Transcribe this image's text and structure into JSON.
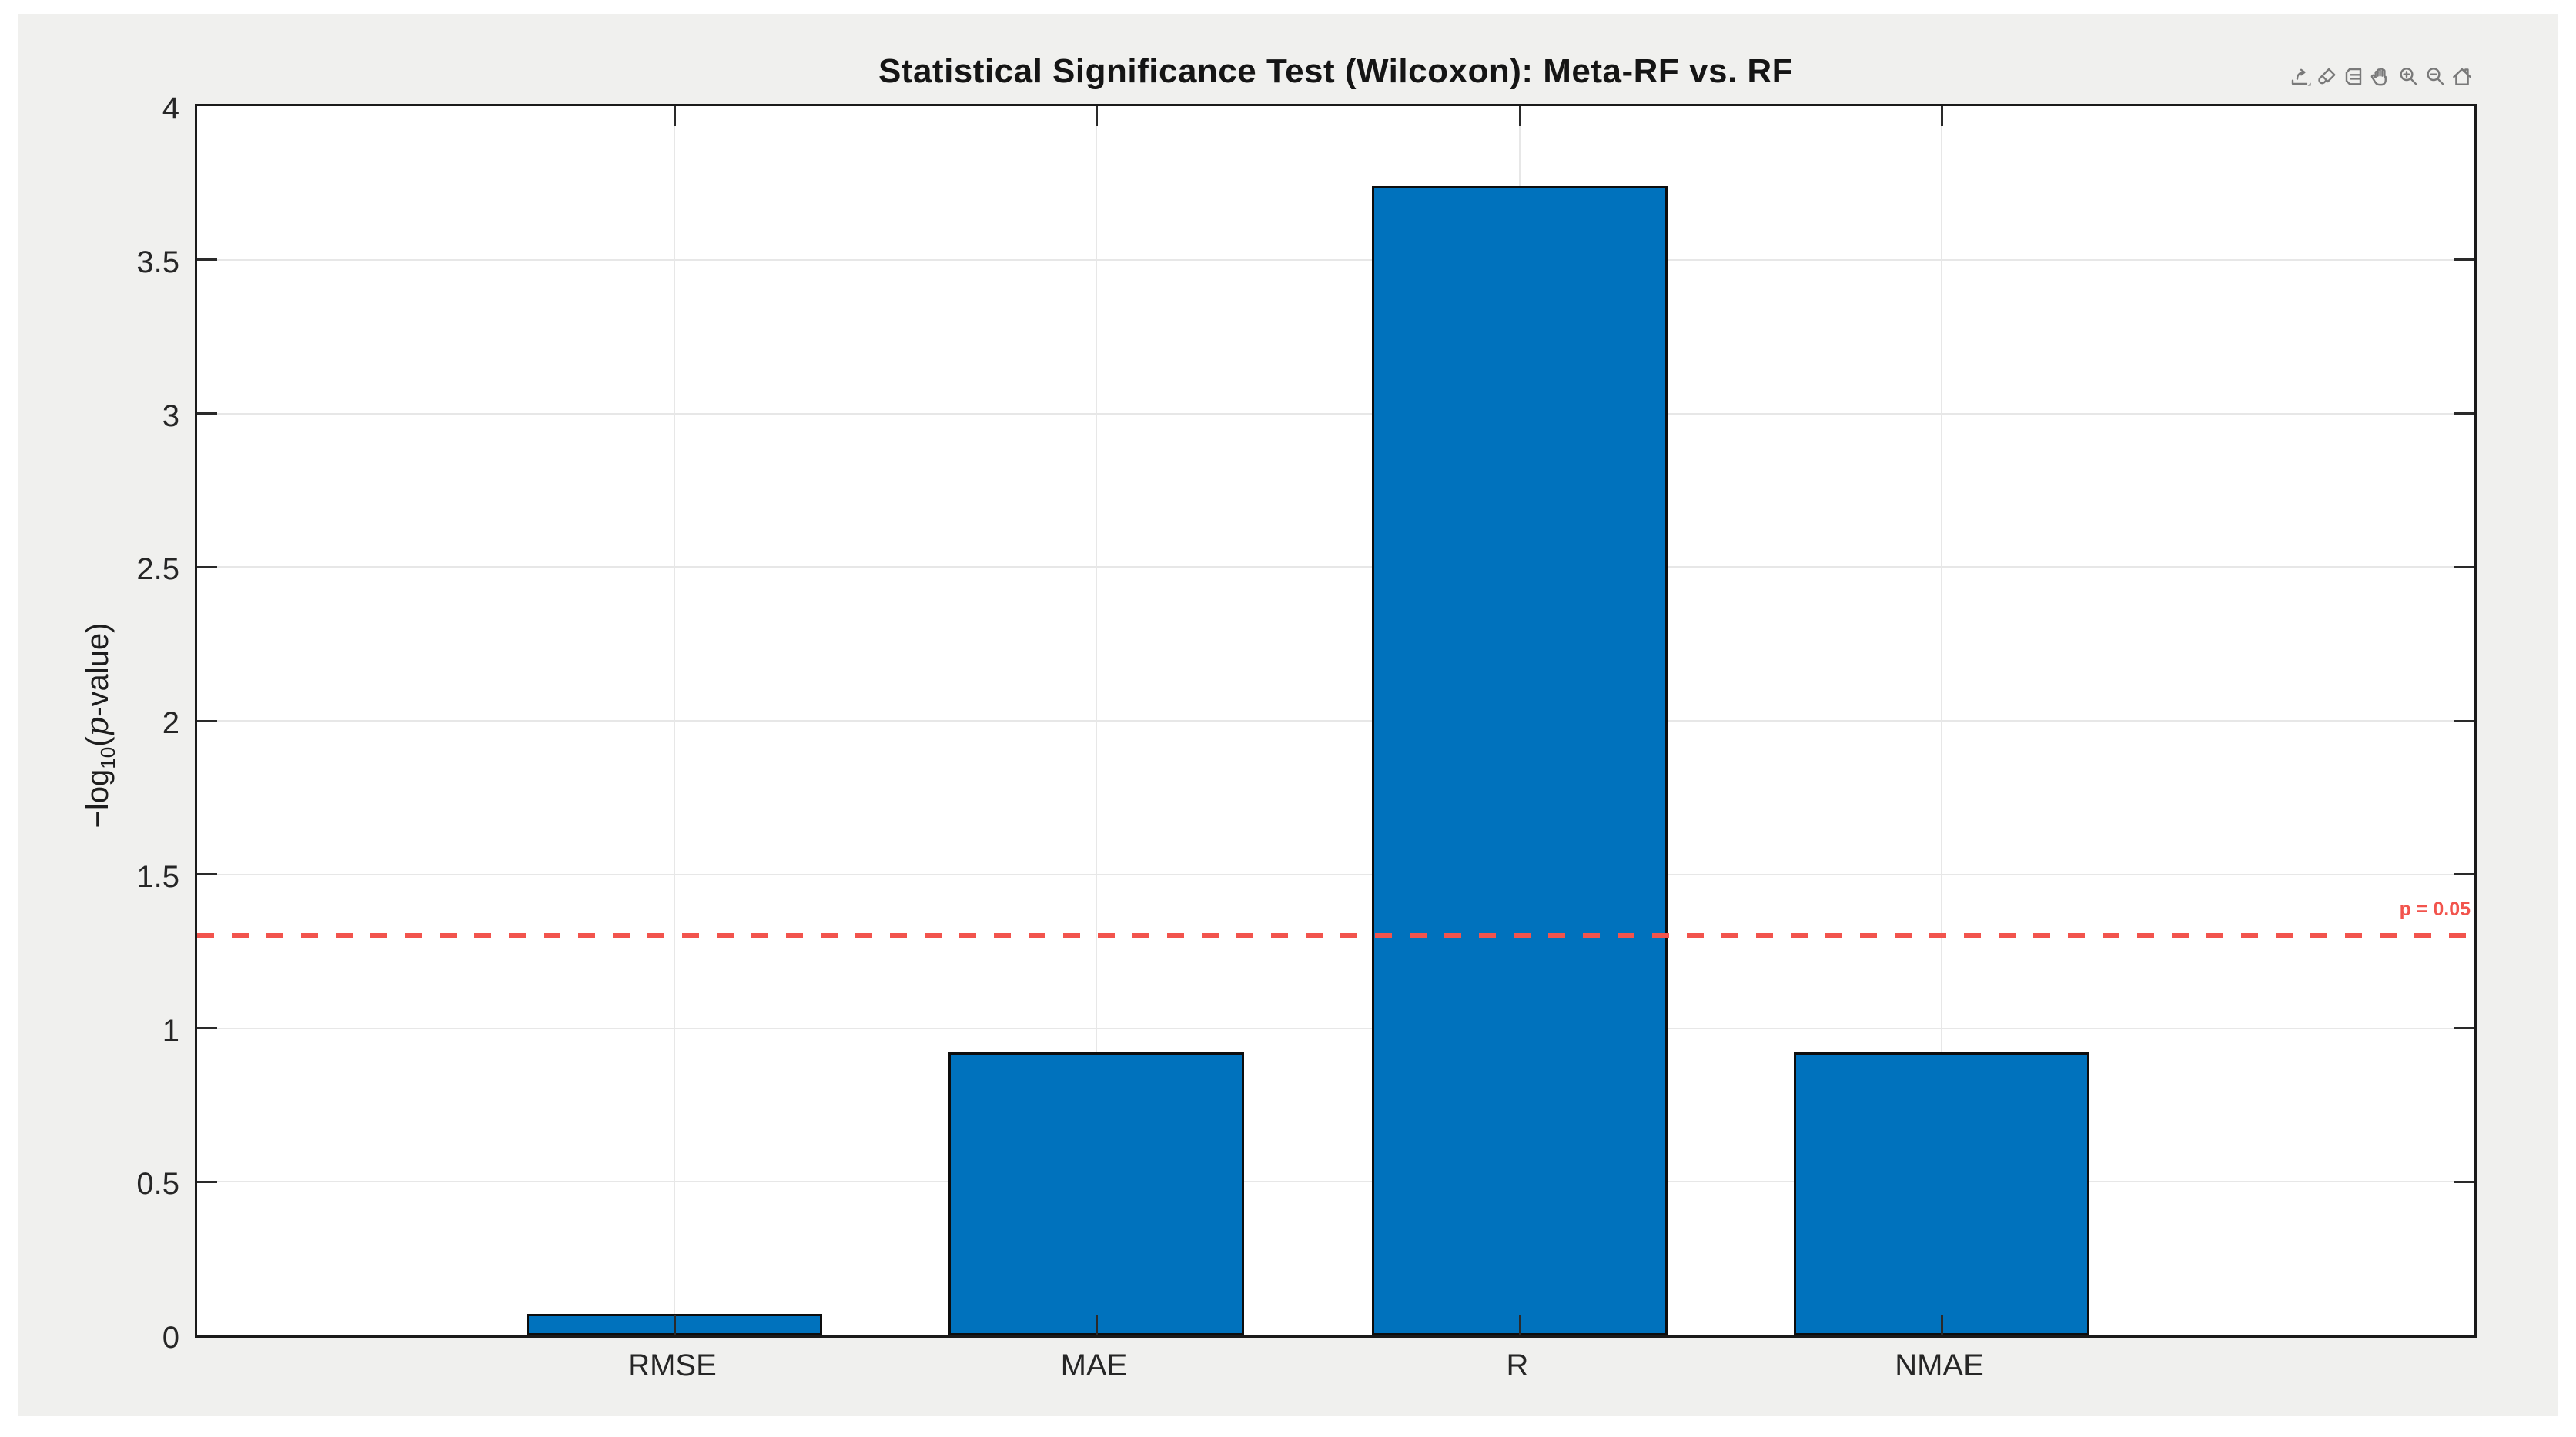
{
  "figure": {
    "page_background": "#ffffff",
    "canvas_background": "#f0f0ee"
  },
  "chart_data": {
    "type": "bar",
    "title": "Statistical Significance Test (Wilcoxon): Meta-RF vs. RF",
    "categories": [
      "RMSE",
      "MAE",
      "R",
      "NMAE"
    ],
    "values": [
      0.07,
      0.92,
      3.74,
      0.92
    ],
    "ylabel": "−log10(p-value)",
    "ylabel_parts": {
      "prefix": "−log",
      "sub": "10",
      "open": "(",
      "pvar": "p",
      "suffix": "-value)"
    },
    "xlabel": "",
    "ylim": [
      0,
      4
    ],
    "ytick_step": 0.5,
    "ytick_labels": [
      "0",
      "0.5",
      "1",
      "1.5",
      "2",
      "2.5",
      "3",
      "3.5",
      "4"
    ],
    "grid": true,
    "legend": "none",
    "bar_color": "#0072BD",
    "bar_edge_color": "#0d0d0d",
    "grid_color": "#e7e7e7",
    "threshold": {
      "value": 1.301,
      "label": "p = 0.05",
      "color": "#f2544d",
      "style": "dashed"
    }
  },
  "toolbar": {
    "icons": [
      "export",
      "brush",
      "datatips",
      "pan",
      "zoom-in",
      "zoom-out",
      "restore-view"
    ]
  }
}
